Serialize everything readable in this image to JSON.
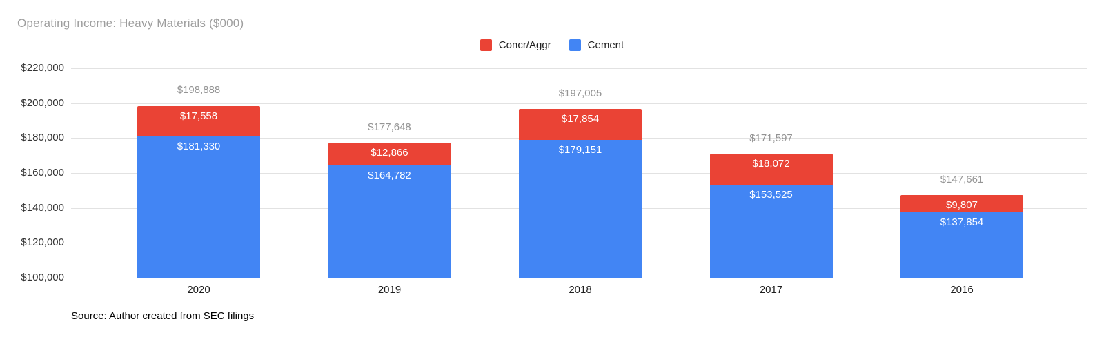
{
  "title": "Operating Income: Heavy Materials ($000)",
  "source_note": "Source: Author created from SEC filings",
  "colors": {
    "concr_aggr": "#EA4335",
    "cement": "#4285F4",
    "title_text": "#9E9E9E",
    "total_label_text": "#949494",
    "grid": "#E2E2E2",
    "baseline": "#D2D2D2",
    "background": "#FFFFFF"
  },
  "chart_data": {
    "type": "bar",
    "stacked": true,
    "orientation": "vertical",
    "grid": true,
    "legend_position": "top-center",
    "title": "Operating Income: Heavy Materials ($000)",
    "categories": [
      "2020",
      "2019",
      "2018",
      "2017",
      "2016"
    ],
    "series": [
      {
        "name": "Concr/Aggr",
        "color": "#EA4335",
        "values": [
          17558,
          12866,
          17854,
          18072,
          9807
        ],
        "labels": [
          "$17,558",
          "$12,866",
          "$17,854",
          "$18,072",
          "$9,807"
        ]
      },
      {
        "name": "Cement",
        "color": "#4285F4",
        "values": [
          181330,
          164782,
          179151,
          153525,
          137854
        ],
        "labels": [
          "$181,330",
          "$164,782",
          "$179,151",
          "$153,525",
          "$137,854"
        ]
      }
    ],
    "totals": [
      198888,
      177648,
      197005,
      171597,
      147661
    ],
    "total_labels": [
      "$198,888",
      "$177,648",
      "$197,005",
      "$171,597",
      "$147,661"
    ],
    "ylim": [
      100000,
      220000
    ],
    "ytick_values": [
      220000,
      200000,
      180000,
      160000,
      140000,
      120000,
      100000
    ],
    "ytick_labels": [
      "$220,000",
      "$200,000",
      "$180,000",
      "$160,000",
      "$140,000",
      "$120,000",
      "$100,000"
    ]
  }
}
